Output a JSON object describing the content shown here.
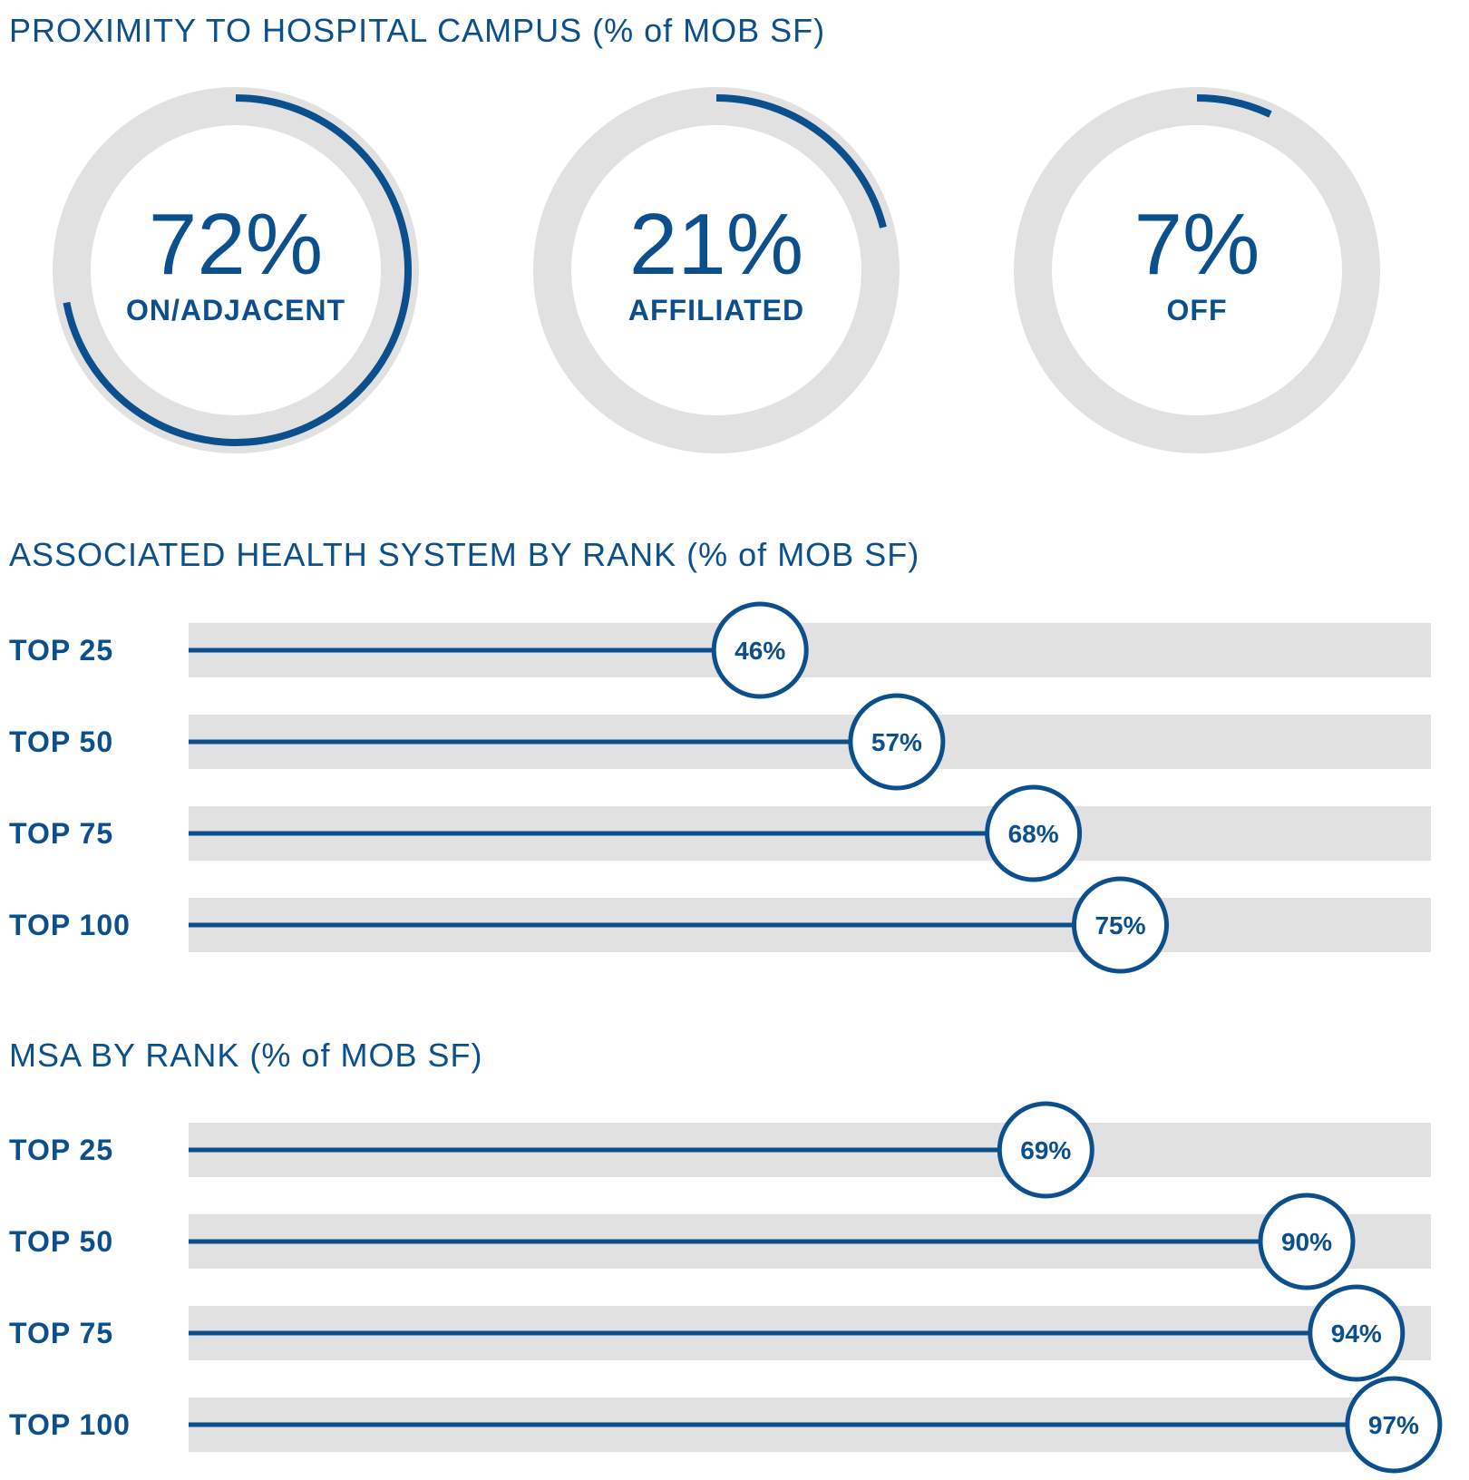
{
  "colors": {
    "accent": "#0b4f8c",
    "track": "#e1e1e2",
    "background": "#ffffff"
  },
  "chart_data": [
    {
      "type": "pie",
      "title": "PROXIMITY TO HOSPITAL CAMPUS (% of MOB SF)",
      "slices": [
        {
          "label": "ON/ADJACENT",
          "value": 72,
          "display": "72%"
        },
        {
          "label": "AFFILIATED",
          "value": 21,
          "display": "21%"
        },
        {
          "label": "OFF",
          "value": 7,
          "display": "7%"
        }
      ]
    },
    {
      "type": "bar",
      "orientation": "horizontal",
      "title": "ASSOCIATED HEALTH SYSTEM BY RANK (% of MOB SF)",
      "categories": [
        "TOP 25",
        "TOP 50",
        "TOP 75",
        "TOP 100"
      ],
      "values": [
        46,
        57,
        68,
        75
      ],
      "value_labels": [
        "46%",
        "57%",
        "68%",
        "75%"
      ],
      "xlim": [
        0,
        100
      ],
      "grid": false
    },
    {
      "type": "bar",
      "orientation": "horizontal",
      "title": "MSA BY RANK (% of MOB SF)",
      "categories": [
        "TOP 25",
        "TOP 50",
        "TOP 75",
        "TOP 100"
      ],
      "values": [
        69,
        90,
        94,
        97
      ],
      "value_labels": [
        "69%",
        "90%",
        "94%",
        "97%"
      ],
      "xlim": [
        0,
        100
      ],
      "grid": false
    }
  ]
}
